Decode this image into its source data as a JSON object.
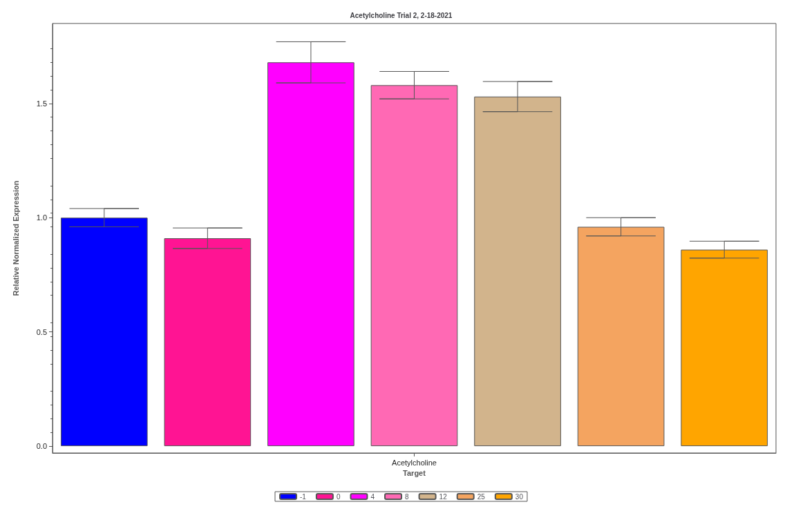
{
  "chart_data": {
    "type": "bar",
    "title": "Acetylcholine Trial 2, 2-18-2021",
    "xlabel": "Target",
    "ylabel": "Relative Normalized Expression",
    "categories": [
      null,
      null,
      null,
      "Acetylcholine",
      null,
      null,
      null
    ],
    "stacked": true,
    "series": [
      {
        "name": "-1",
        "color": "#0000ff",
        "values": [
          1.0,
          null,
          null,
          null,
          null,
          null,
          null
        ],
        "errors": [
          0.04,
          null,
          null,
          null,
          null,
          null,
          null
        ]
      },
      {
        "name": "0",
        "color": "#ff1493",
        "values": [
          null,
          0.91,
          null,
          null,
          null,
          null,
          null
        ],
        "errors": [
          null,
          0.045,
          null,
          null,
          null,
          null,
          null
        ]
      },
      {
        "name": "4",
        "color": "#ff00ff",
        "values": [
          null,
          null,
          1.68,
          null,
          null,
          null,
          null
        ],
        "errors": [
          null,
          null,
          0.09,
          null,
          null,
          null,
          null
        ]
      },
      {
        "name": "8",
        "color": "#ff69b4",
        "values": [
          null,
          null,
          null,
          1.58,
          null,
          null,
          null
        ],
        "errors": [
          null,
          null,
          null,
          0.06,
          null,
          null,
          null
        ]
      },
      {
        "name": "12",
        "color": "#d2b48c",
        "values": [
          null,
          null,
          null,
          null,
          1.53,
          null,
          null
        ],
        "errors": [
          null,
          null,
          null,
          null,
          0.066,
          null,
          null
        ]
      },
      {
        "name": "25",
        "color": "#f4a460",
        "values": [
          null,
          null,
          null,
          null,
          null,
          0.96,
          null
        ],
        "errors": [
          null,
          null,
          null,
          null,
          null,
          0.04,
          null
        ]
      },
      {
        "name": "30",
        "color": "#ffa500",
        "values": [
          null,
          null,
          null,
          null,
          null,
          null,
          0.86
        ],
        "errors": [
          null,
          null,
          null,
          null,
          null,
          null,
          0.037
        ]
      }
    ],
    "ylim": [
      -0.03,
      1.85
    ],
    "yticks": [
      {
        "value": 0,
        "label": "0.0"
      },
      0.5,
      {
        "value": 1,
        "label": "1.0"
      },
      1.5
    ],
    "grid": false,
    "legend": "bottom"
  }
}
